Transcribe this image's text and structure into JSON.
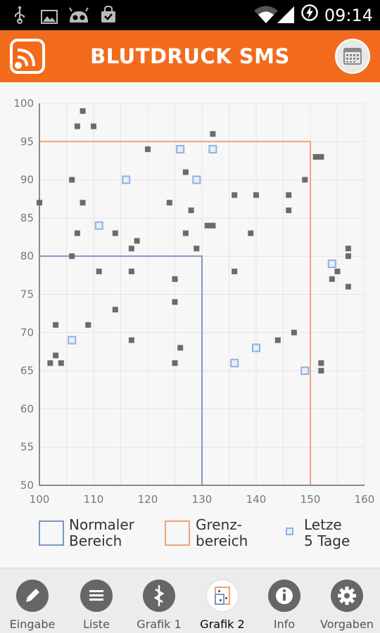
{
  "status_bar": {
    "time": "09:14",
    "icons": [
      "usb-icon",
      "image-icon",
      "android-icon",
      "shopping-bag-icon",
      "wifi-icon",
      "signal-icon",
      "battery-charging-icon"
    ]
  },
  "app_bar": {
    "title": "BLUTDRUCK SMS",
    "logo_icon": "app-logo-icon",
    "action_icon": "calendar-icon"
  },
  "colors": {
    "accent": "#f26b1d",
    "normal_range": "#7d97c9",
    "border_range": "#f0a276",
    "last_days": "#8fb2de",
    "point": "#6b6b6b"
  },
  "chart_data": {
    "type": "scatter",
    "xlim": [
      100,
      160
    ],
    "ylim": [
      50,
      100
    ],
    "x_ticks": [
      "100",
      "110",
      "120",
      "130",
      "140",
      "150",
      "160"
    ],
    "y_ticks": [
      "100",
      "95",
      "90",
      "85",
      "80",
      "75",
      "70",
      "65",
      "60",
      "55",
      "50"
    ],
    "grid": true,
    "ranges": [
      {
        "name": "Normaler Bereich",
        "x": [
          100,
          130
        ],
        "y": [
          50,
          80
        ]
      },
      {
        "name": "Grenzbereich",
        "x": [
          100,
          150
        ],
        "y": [
          50,
          95
        ]
      }
    ],
    "series": [
      {
        "name": "",
        "points": [
          [
            100,
            87
          ],
          [
            102,
            66
          ],
          [
            103,
            71
          ],
          [
            103,
            67
          ],
          [
            104,
            66
          ],
          [
            106,
            90
          ],
          [
            106,
            80
          ],
          [
            107,
            97
          ],
          [
            107,
            83
          ],
          [
            108,
            99
          ],
          [
            108,
            87
          ],
          [
            109,
            71
          ],
          [
            110,
            97
          ],
          [
            111,
            78
          ],
          [
            114,
            83
          ],
          [
            114,
            73
          ],
          [
            117,
            81
          ],
          [
            117,
            78
          ],
          [
            117,
            69
          ],
          [
            118,
            82
          ],
          [
            120,
            94
          ],
          [
            124,
            87
          ],
          [
            125,
            77
          ],
          [
            125,
            74
          ],
          [
            125,
            66
          ],
          [
            126,
            68
          ],
          [
            127,
            91
          ],
          [
            127,
            83
          ],
          [
            128,
            86
          ],
          [
            129,
            81
          ],
          [
            131,
            84
          ],
          [
            132,
            84
          ],
          [
            132,
            96
          ],
          [
            136,
            88
          ],
          [
            136,
            78
          ],
          [
            139,
            83
          ],
          [
            140,
            88
          ],
          [
            144,
            69
          ],
          [
            146,
            88
          ],
          [
            146,
            86
          ],
          [
            147,
            70
          ],
          [
            149,
            90
          ],
          [
            151,
            93
          ],
          [
            152,
            93
          ],
          [
            152,
            66
          ],
          [
            152,
            65
          ],
          [
            154,
            77
          ],
          [
            155,
            78
          ],
          [
            157,
            81
          ],
          [
            157,
            80
          ],
          [
            157,
            76
          ]
        ]
      },
      {
        "name": "Letze 5 Tage",
        "points": [
          [
            106,
            69
          ],
          [
            111,
            84
          ],
          [
            116,
            90
          ],
          [
            126,
            94
          ],
          [
            129,
            90
          ],
          [
            132,
            94
          ],
          [
            136,
            66
          ],
          [
            140,
            68
          ],
          [
            149,
            65
          ],
          [
            154,
            79
          ]
        ]
      }
    ]
  },
  "legend": {
    "normal_line1": "Normaler",
    "normal_line2": "Bereich",
    "border_line1": "Grenz-",
    "border_line2": "bereich",
    "last_line1": "Letze",
    "last_line2": "5 Tage"
  },
  "bottom_nav": [
    {
      "label": "Eingabe",
      "icon": "pencil-icon",
      "active": false
    },
    {
      "label": "Liste",
      "icon": "list-icon",
      "active": false
    },
    {
      "label": "Grafik 1",
      "icon": "pulse-graph-icon",
      "active": false
    },
    {
      "label": "Grafik 2",
      "icon": "scatter-chart-icon",
      "active": true
    },
    {
      "label": "Info",
      "icon": "info-icon",
      "active": false
    },
    {
      "label": "Vorgaben",
      "icon": "gear-icon",
      "active": false
    }
  ]
}
